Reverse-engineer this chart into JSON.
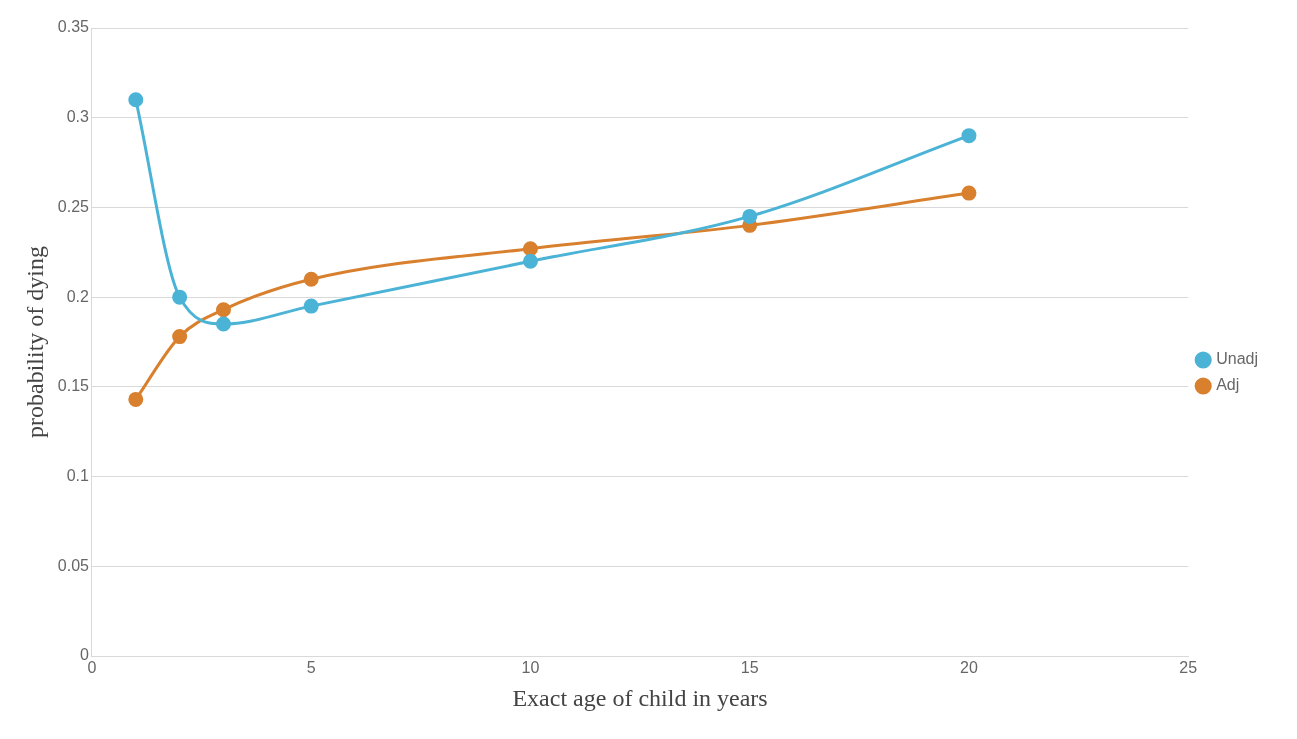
{
  "chart_data": {
    "type": "line",
    "xlabel": "Exact age of child in years",
    "ylabel": "probability of dying",
    "x": [
      1,
      2,
      3,
      5,
      10,
      15,
      20
    ],
    "series": [
      {
        "name": "Unadj",
        "color": "#4bb3d6",
        "values": [
          0.31,
          0.2,
          0.185,
          0.195,
          0.22,
          0.245,
          0.29
        ]
      },
      {
        "name": "Adj",
        "color": "#d9802e",
        "values": [
          0.143,
          0.178,
          0.193,
          0.21,
          0.227,
          0.24,
          0.258
        ]
      }
    ],
    "xlim": [
      0,
      25
    ],
    "xticks": [
      0,
      5,
      10,
      15,
      20,
      25
    ],
    "ylim": [
      0,
      0.35
    ],
    "yticks": [
      0,
      0.05,
      0.1,
      0.15,
      0.2,
      0.25,
      0.3,
      0.35
    ],
    "grid": "y",
    "legend": "right",
    "marker": "circle",
    "line_style": "solid"
  }
}
